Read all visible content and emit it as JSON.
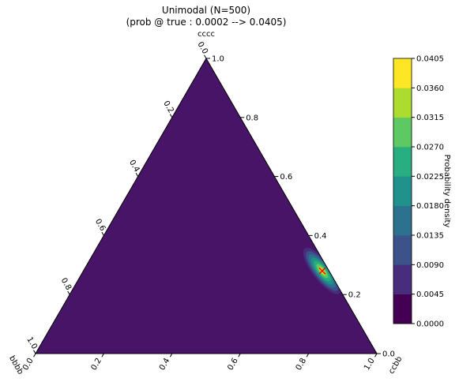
{
  "chart_data": {
    "type": "heatmap",
    "title": "Unimodal (N=500)",
    "subtitle": "(prob @ true : 0.0002 --> 0.0405)",
    "axes": {
      "top": {
        "label": "cccc"
      },
      "left": {
        "label": "bbbb"
      },
      "right": {
        "label": "ccbb"
      }
    },
    "ticks": [
      "0.0",
      "0.2",
      "0.4",
      "0.6",
      "0.8",
      "1.0"
    ],
    "tick_values": [
      0.0,
      0.2,
      0.4,
      0.6,
      0.8,
      1.0
    ],
    "colorbar": {
      "label": "Probability density",
      "levels": [
        "0.0000",
        "0.0045",
        "0.0090",
        "0.0135",
        "0.0180",
        "0.0225",
        "0.0270",
        "0.0315",
        "0.0360",
        "0.0405"
      ],
      "colors": [
        "#440154",
        "#472d7b",
        "#3b528b",
        "#2c728e",
        "#21918c",
        "#28ae80",
        "#5ec962",
        "#addc30",
        "#fde725"
      ]
    },
    "background_color": "#481467",
    "mode": {
      "ccbb": 0.7,
      "cccc": 0.28,
      "bbbb": 0.02
    },
    "true_point": {
      "ccbb": 0.7,
      "cccc": 0.28,
      "bbbb": 0.02,
      "marker_color": "#ff0000"
    }
  }
}
